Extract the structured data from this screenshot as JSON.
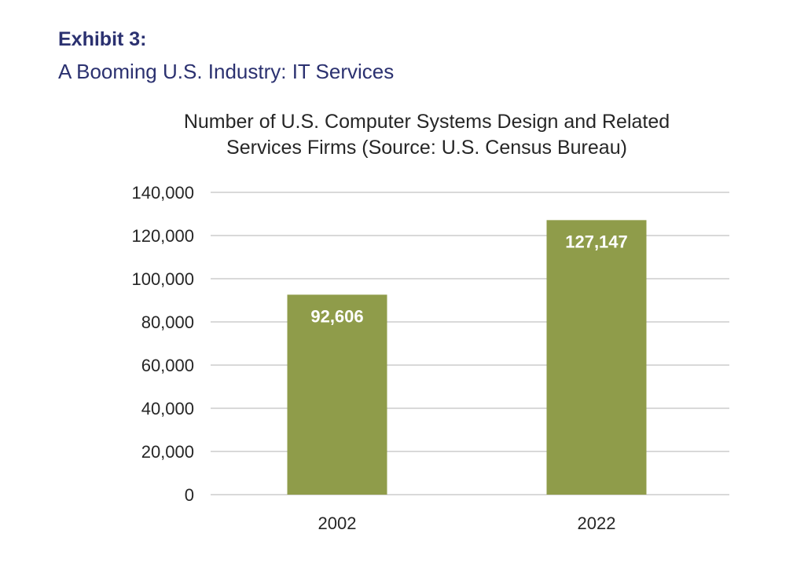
{
  "header": {
    "label": "Exhibit 3:",
    "subtitle": "A Booming U.S. Industry: IT Services"
  },
  "chart_data": {
    "type": "bar",
    "title": [
      "Number of U.S. Computer Systems Design and Related",
      "Services Firms (Source: U.S. Census Bureau)"
    ],
    "categories": [
      "2002",
      "2022"
    ],
    "values": [
      92606,
      127147
    ],
    "data_labels": [
      "92,606",
      "127,147"
    ],
    "ylim": [
      0,
      140000
    ],
    "yticks": [
      0,
      20000,
      40000,
      60000,
      80000,
      100000,
      120000,
      140000
    ],
    "ytick_labels": [
      "0",
      "20,000",
      "40,000",
      "60,000",
      "80,000",
      "100,000",
      "120,000",
      "140,000"
    ],
    "xlabel": "",
    "ylabel": "",
    "grid": true,
    "legend": "none",
    "bar_color": "#8f9c4a",
    "grid_color": "#d9d9d9"
  }
}
